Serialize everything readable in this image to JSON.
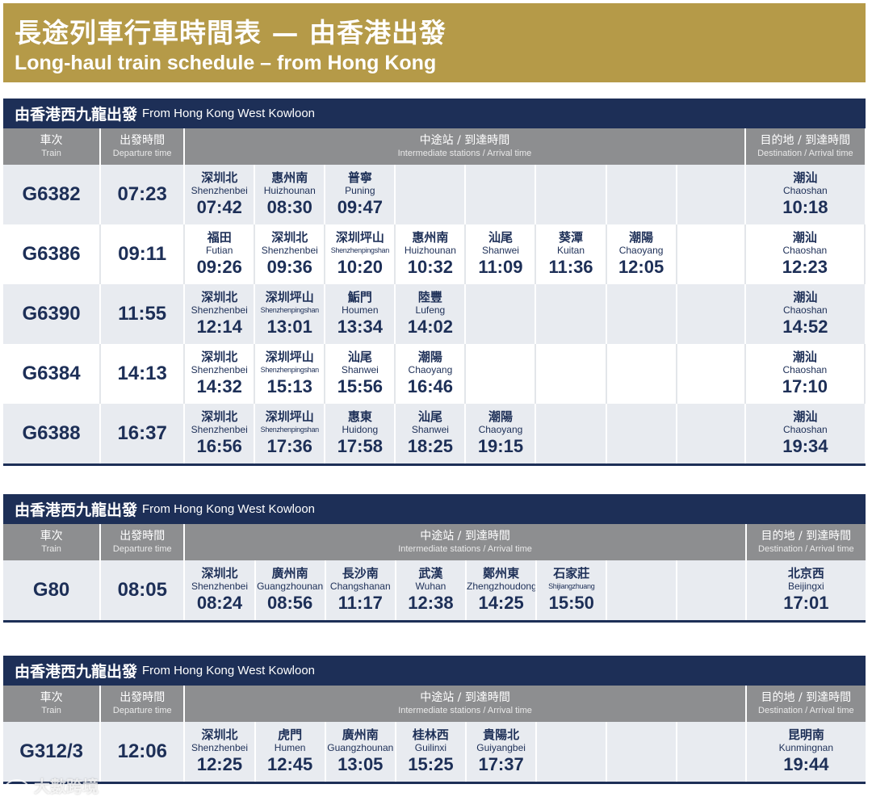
{
  "banner": {
    "title_zh": "長途列車行車時間表 — 由香港出發",
    "title_en": "Long-haul train schedule – from Hong Kong"
  },
  "headers": {
    "train_zh": "車次",
    "train_en": "Train",
    "departure_zh": "出發時間",
    "departure_en": "Departure time",
    "intermediate_zh": "中途站 / 到達時間",
    "intermediate_en": "Intermediate stations / Arrival time",
    "destination_zh": "目的地 / 到達時間",
    "destination_en": "Destination / Arrival time"
  },
  "sections": [
    {
      "title_zh": "由香港西九龍出發",
      "title_en": "From Hong Kong West Kowloon",
      "rows": [
        {
          "train": "G6382",
          "departure": "07:23",
          "stops": [
            {
              "zh": "深圳北",
              "en": "Shenzhenbei",
              "time": "07:42"
            },
            {
              "zh": "惠州南",
              "en": "Huizhounan",
              "time": "08:30"
            },
            {
              "zh": "普寧",
              "en": "Puning",
              "time": "09:47"
            }
          ],
          "destination": {
            "zh": "潮汕",
            "en": "Chaoshan",
            "time": "10:18"
          }
        },
        {
          "train": "G6386",
          "departure": "09:11",
          "stops": [
            {
              "zh": "福田",
              "en": "Futian",
              "time": "09:26"
            },
            {
              "zh": "深圳北",
              "en": "Shenzhenbei",
              "time": "09:36"
            },
            {
              "zh": "深圳坪山",
              "en": "Shenzhenpingshan",
              "time": "10:20"
            },
            {
              "zh": "惠州南",
              "en": "Huizhounan",
              "time": "10:32"
            },
            {
              "zh": "汕尾",
              "en": "Shanwei",
              "time": "11:09"
            },
            {
              "zh": "葵潭",
              "en": "Kuitan",
              "time": "11:36"
            },
            {
              "zh": "潮陽",
              "en": "Chaoyang",
              "time": "12:05"
            }
          ],
          "destination": {
            "zh": "潮汕",
            "en": "Chaoshan",
            "time": "12:23"
          }
        },
        {
          "train": "G6390",
          "departure": "11:55",
          "stops": [
            {
              "zh": "深圳北",
              "en": "Shenzhenbei",
              "time": "12:14"
            },
            {
              "zh": "深圳坪山",
              "en": "Shenzhenpingshan",
              "time": "13:01"
            },
            {
              "zh": "鮜門",
              "en": "Houmen",
              "time": "13:34"
            },
            {
              "zh": "陸豐",
              "en": "Lufeng",
              "time": "14:02"
            }
          ],
          "destination": {
            "zh": "潮汕",
            "en": "Chaoshan",
            "time": "14:52"
          }
        },
        {
          "train": "G6384",
          "departure": "14:13",
          "stops": [
            {
              "zh": "深圳北",
              "en": "Shenzhenbei",
              "time": "14:32"
            },
            {
              "zh": "深圳坪山",
              "en": "Shenzhenpingshan",
              "time": "15:13"
            },
            {
              "zh": "汕尾",
              "en": "Shanwei",
              "time": "15:56"
            },
            {
              "zh": "潮陽",
              "en": "Chaoyang",
              "time": "16:46"
            }
          ],
          "destination": {
            "zh": "潮汕",
            "en": "Chaoshan",
            "time": "17:10"
          }
        },
        {
          "train": "G6388",
          "departure": "16:37",
          "stops": [
            {
              "zh": "深圳北",
              "en": "Shenzhenbei",
              "time": "16:56"
            },
            {
              "zh": "深圳坪山",
              "en": "Shenzhenpingshan",
              "time": "17:36"
            },
            {
              "zh": "惠東",
              "en": "Huidong",
              "time": "17:58"
            },
            {
              "zh": "汕尾",
              "en": "Shanwei",
              "time": "18:25"
            },
            {
              "zh": "潮陽",
              "en": "Chaoyang",
              "time": "19:15"
            }
          ],
          "destination": {
            "zh": "潮汕",
            "en": "Chaoshan",
            "time": "19:34"
          }
        }
      ]
    },
    {
      "title_zh": "由香港西九龍出發",
      "title_en": "From Hong Kong West Kowloon",
      "rows": [
        {
          "train": "G80",
          "departure": "08:05",
          "stops": [
            {
              "zh": "深圳北",
              "en": "Shenzhenbei",
              "time": "08:24"
            },
            {
              "zh": "廣州南",
              "en": "Guangzhounan",
              "time": "08:56"
            },
            {
              "zh": "長沙南",
              "en": "Changshanan",
              "time": "11:17"
            },
            {
              "zh": "武漢",
              "en": "Wuhan",
              "time": "12:38"
            },
            {
              "zh": "鄭州東",
              "en": "Zhengzhoudong",
              "time": "14:25"
            },
            {
              "zh": "石家莊",
              "en": "Shijiangzhuang",
              "time": "15:50"
            }
          ],
          "destination": {
            "zh": "北京西",
            "en": "Beijingxi",
            "time": "17:01"
          }
        }
      ]
    },
    {
      "title_zh": "由香港西九龍出發",
      "title_en": "From Hong Kong West Kowloon",
      "rows": [
        {
          "train": "G312/3",
          "departure": "12:06",
          "stops": [
            {
              "zh": "深圳北",
              "en": "Shenzhenbei",
              "time": "12:25"
            },
            {
              "zh": "虎門",
              "en": "Humen",
              "time": "12:45"
            },
            {
              "zh": "廣州南",
              "en": "Guangzhounan",
              "time": "13:05"
            },
            {
              "zh": "桂林西",
              "en": "Guilinxi",
              "time": "15:25"
            },
            {
              "zh": "貴陽北",
              "en": "Guiyangbei",
              "time": "17:37"
            }
          ],
          "destination": {
            "zh": "昆明南",
            "en": "Kunmingnan",
            "time": "19:44"
          }
        }
      ]
    }
  ],
  "watermark": "大數跨境",
  "colors": {
    "banner": "#b59a48",
    "navy": "#1d2f57",
    "header_grey": "#8d8e90",
    "row_shade": "#e8ebf0"
  }
}
